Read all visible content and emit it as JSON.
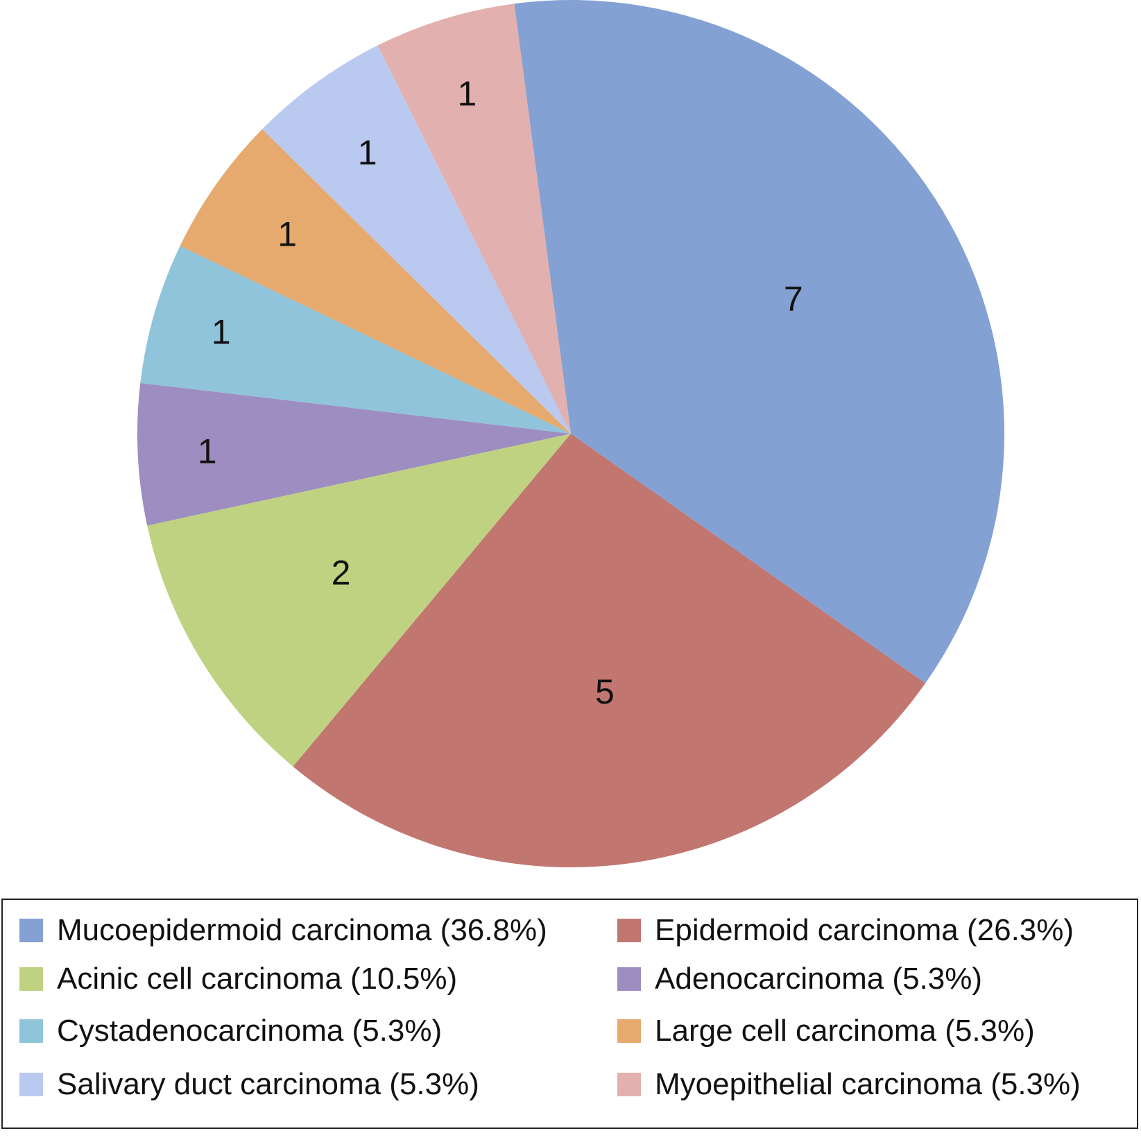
{
  "chart_data": {
    "type": "pie",
    "slices": [
      {
        "name": "Mucoepidermoid carcinoma",
        "value": 7,
        "legend": "Mucoepidermoid carcinoma (36.8%)",
        "color": "#84a1d4"
      },
      {
        "name": "Epidermoid carcinoma",
        "value": 5,
        "legend": "Epidermoid carcinoma (26.3%)",
        "color": "#c27670"
      },
      {
        "name": "Acinic cell carcinoma",
        "value": 2,
        "legend": "Acinic cell carcinoma (10.5%)",
        "color": "#bfd282"
      },
      {
        "name": "Adenocarcinoma",
        "value": 1,
        "legend": "Adenocarcinoma (5.3%)",
        "color": "#9e8dc0"
      },
      {
        "name": "Cystadenocarcinoma",
        "value": 1,
        "legend": "Cystadenocarcinoma (5.3%)",
        "color": "#8fc4db"
      },
      {
        "name": "Large cell carcinoma",
        "value": 1,
        "legend": "Large cell carcinoma (5.3%)",
        "color": "#e6aa6e"
      },
      {
        "name": "Salivary duct carcinoma",
        "value": 1,
        "legend": "Salivary duct carcinoma (5.3%)",
        "color": "#b9c9f0"
      },
      {
        "name": "Myoepithelial carcinoma",
        "value": 1,
        "legend": "Myoepithelial carcinoma (5.3%)",
        "color": "#e2b0ae"
      }
    ],
    "data_labels": true,
    "legend_position": "bottom",
    "legend_columns": 2
  }
}
